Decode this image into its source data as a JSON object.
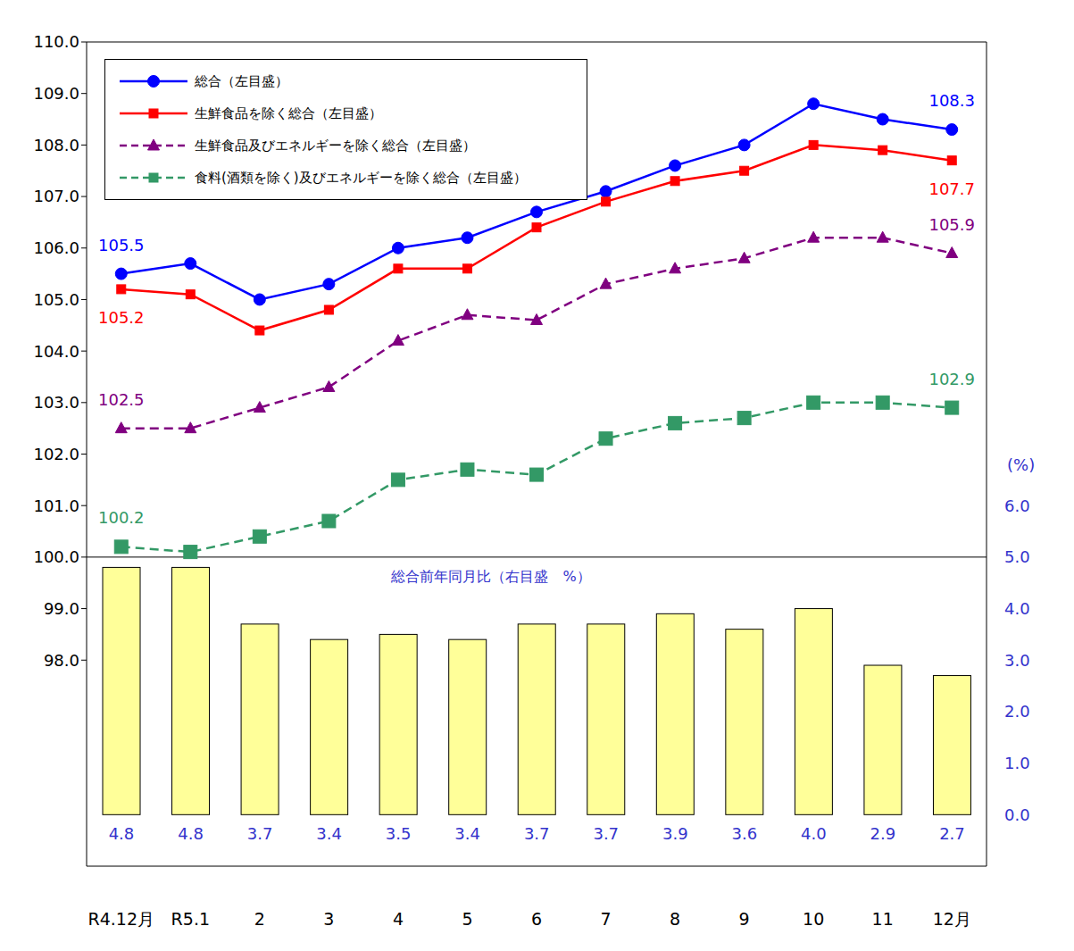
{
  "chart_data": {
    "type": "line",
    "categories": [
      "R4.12月",
      "R5.1",
      "2",
      "3",
      "4",
      "5",
      "6",
      "7",
      "8",
      "9",
      "10",
      "11",
      "12月"
    ],
    "ylim": [
      94,
      110
    ],
    "yticks": [
      {
        "value": 98,
        "label": "98.0"
      },
      {
        "value": 99,
        "label": "99.0"
      },
      {
        "value": 100,
        "label": "100.0"
      },
      {
        "value": 101,
        "label": "101.0"
      },
      {
        "value": 102,
        "label": "102.0"
      },
      {
        "value": 103,
        "label": "103.0"
      },
      {
        "value": 104,
        "label": "104.0"
      },
      {
        "value": 105,
        "label": "105.0"
      },
      {
        "value": 106,
        "label": "106.0"
      },
      {
        "value": 107,
        "label": "107.0"
      },
      {
        "value": 108,
        "label": "108.0"
      },
      {
        "value": 109,
        "label": "109.0"
      },
      {
        "value": 110,
        "label": "110.0"
      }
    ],
    "y2lim": [
      -1,
      15
    ],
    "y2ticks": [
      {
        "value": 0,
        "label": "0.0"
      },
      {
        "value": 1,
        "label": "1.0"
      },
      {
        "value": 2,
        "label": "2.0"
      },
      {
        "value": 3,
        "label": "3.0"
      },
      {
        "value": 4,
        "label": "4.0"
      },
      {
        "value": 5,
        "label": "5.0"
      },
      {
        "value": 6,
        "label": "6.0"
      }
    ],
    "y2label": "(%)",
    "grid": false,
    "legend": "upper left",
    "series": [
      {
        "name": "総合（左目盛）",
        "type": "line",
        "color": "#0000ff",
        "marker": "circle",
        "line_style": "solid",
        "values": [
          105.5,
          105.7,
          105.0,
          105.3,
          106.0,
          106.2,
          106.7,
          107.1,
          107.6,
          108.0,
          108.8,
          108.5,
          108.3
        ],
        "value_labels": [
          "105.5",
          null,
          null,
          null,
          null,
          null,
          null,
          null,
          null,
          null,
          null,
          null,
          "108.3"
        ]
      },
      {
        "name": "生鮮食品を除く総合（左目盛）",
        "type": "line",
        "color": "#ff0000",
        "marker": "square",
        "line_style": "solid",
        "values": [
          105.2,
          105.1,
          104.4,
          104.8,
          105.6,
          105.6,
          106.4,
          106.9,
          107.3,
          107.5,
          108.0,
          107.9,
          107.7
        ],
        "value_labels": [
          "105.2",
          null,
          null,
          null,
          null,
          null,
          null,
          null,
          null,
          null,
          null,
          null,
          "107.7"
        ]
      },
      {
        "name": "生鮮食品及びエネルギーを除く総合（左目盛）",
        "type": "line",
        "color": "#800080",
        "marker": "triangle",
        "line_style": "dashed",
        "values": [
          102.5,
          102.5,
          102.9,
          103.3,
          104.2,
          104.7,
          104.6,
          105.3,
          105.6,
          105.8,
          106.2,
          106.2,
          105.9
        ],
        "value_labels": [
          "102.5",
          null,
          null,
          null,
          null,
          null,
          null,
          null,
          null,
          null,
          null,
          null,
          "105.9"
        ]
      },
      {
        "name": "食料(酒類を除く)及びエネルギーを除く総合（左目盛）",
        "type": "line",
        "color": "#339966",
        "marker": "square",
        "line_style": "dashed",
        "values": [
          100.2,
          100.1,
          100.4,
          100.7,
          101.5,
          101.7,
          101.6,
          102.3,
          102.6,
          102.7,
          103.0,
          103.0,
          102.9
        ],
        "value_labels": [
          "100.2",
          null,
          null,
          null,
          null,
          null,
          null,
          null,
          null,
          null,
          null,
          null,
          "102.9"
        ]
      },
      {
        "name": "総合前年同月比（右目盛　%）",
        "type": "bar",
        "axis": "y2",
        "color": "#ffff99",
        "data_labels": true,
        "values": [
          4.8,
          4.8,
          3.7,
          3.4,
          3.5,
          3.4,
          3.7,
          3.7,
          3.9,
          3.6,
          4.0,
          2.9,
          2.7
        ],
        "value_labels": [
          "4.8",
          "4.8",
          "3.7",
          "3.4",
          "3.5",
          "3.4",
          "3.7",
          "3.7",
          "3.9",
          "3.6",
          "4.0",
          "2.9",
          "2.7"
        ]
      }
    ]
  }
}
